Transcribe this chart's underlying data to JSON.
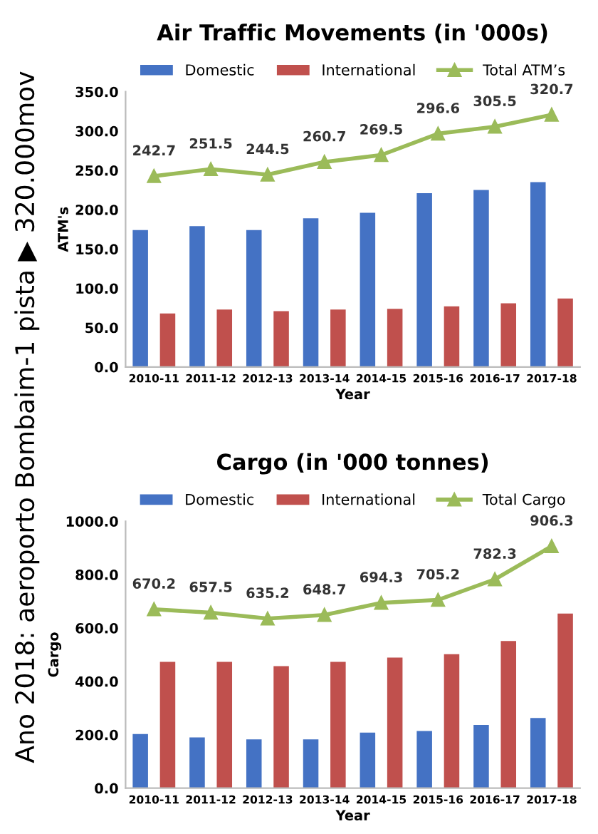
{
  "chart_data": [
    {
      "type": "bar",
      "title": "Air Traffic Movements (in '000s)",
      "xlabel": "Year",
      "ylabel": "ATM's",
      "categories": [
        "2010-11",
        "2011-12",
        "2012-13",
        "2013-14",
        "2014-15",
        "2015-16",
        "2016-17",
        "2017-18"
      ],
      "series": [
        {
          "name": "Domestic",
          "color": "#4472c4",
          "values": [
            174,
            179,
            174,
            189,
            196,
            221,
            225,
            235
          ]
        },
        {
          "name": "International",
          "color": "#c0504d",
          "values": [
            68,
            73,
            71,
            73,
            74,
            77,
            81,
            87
          ]
        },
        {
          "name": "Total ATM’s",
          "type": "line",
          "color": "#9bbb59",
          "marker": "triangle",
          "values": [
            242.7,
            251.5,
            244.5,
            260.7,
            269.5,
            296.6,
            305.5,
            320.7
          ],
          "value_labels": [
            "242.7",
            "251.5",
            "244.5",
            "260.7",
            "269.5",
            "296.6",
            "305.5",
            "320.7"
          ]
        }
      ],
      "ylim": [
        0,
        350
      ],
      "yticks": [
        {
          "value": 0,
          "label": "0.0"
        },
        {
          "value": 50,
          "label": "50.0"
        },
        {
          "value": 100,
          "label": "100.0"
        },
        {
          "value": 150,
          "label": "150.0"
        },
        {
          "value": 200,
          "label": "200.0"
        },
        {
          "value": 250,
          "label": "250.0"
        },
        {
          "value": 300,
          "label": "300.0"
        },
        {
          "value": 350,
          "label": "350.0"
        }
      ],
      "grid": false,
      "legend": "top",
      "annotations": [
        "Ano 2018: aeroporto Bombaim-1 pista ▶ 320.000mov"
      ]
    },
    {
      "type": "bar",
      "title": "Cargo (in '000 tonnes)",
      "xlabel": "Year",
      "ylabel": "Cargo",
      "categories": [
        "2010-11",
        "2011-12",
        "2012-13",
        "2013-14",
        "2014-15",
        "2015-16",
        "2016-17",
        "2017-18"
      ],
      "series": [
        {
          "name": "Domestic",
          "color": "#4472c4",
          "values": [
            203,
            190,
            183,
            183,
            208,
            214,
            237,
            263
          ]
        },
        {
          "name": "International",
          "color": "#c0504d",
          "values": [
            473,
            473,
            457,
            473,
            489,
            502,
            551,
            654
          ]
        },
        {
          "name": "Total Cargo",
          "type": "line",
          "color": "#9bbb59",
          "marker": "triangle",
          "values": [
            670.2,
            657.5,
            635.2,
            648.7,
            694.3,
            705.2,
            782.3,
            906.3
          ],
          "value_labels": [
            "670.2",
            "657.5",
            "635.2",
            "648.7",
            "694.3",
            "705.2",
            "782.3",
            "906.3"
          ]
        }
      ],
      "ylim": [
        0,
        1000
      ],
      "yticks": [
        {
          "value": 0,
          "label": "0.0"
        },
        {
          "value": 200,
          "label": "200.0"
        },
        {
          "value": 400,
          "label": "400.0"
        },
        {
          "value": 600,
          "label": "600.0"
        },
        {
          "value": 800,
          "label": "800.0"
        },
        {
          "value": 1000,
          "label": "1000.0"
        }
      ],
      "grid": false,
      "legend": "top"
    }
  ]
}
